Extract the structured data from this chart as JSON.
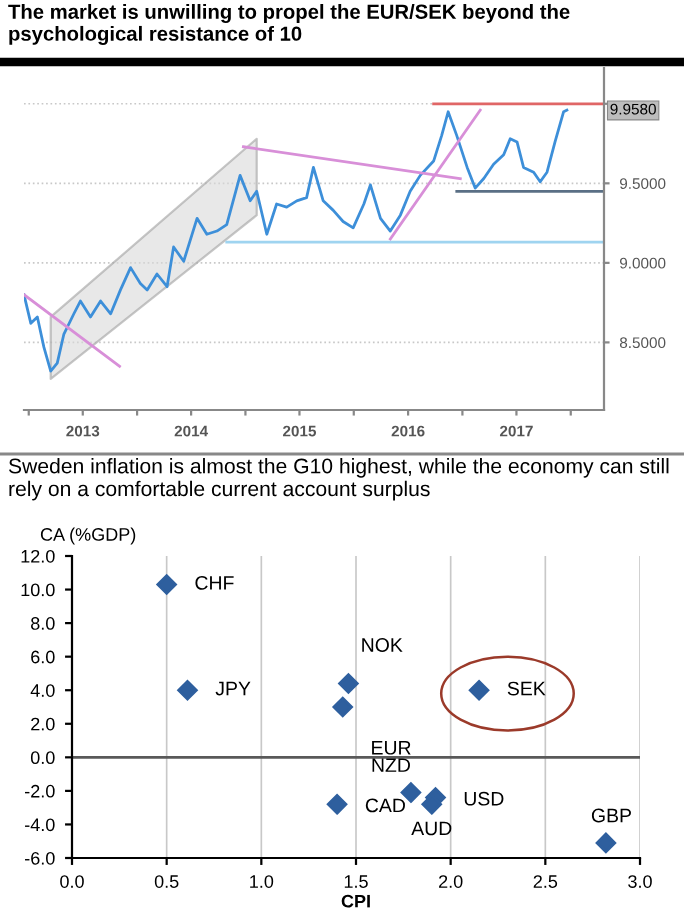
{
  "chart_data": [
    {
      "type": "line",
      "title": "The market is unwilling to propel the EUR/SEK beyond the psychological resistance of 10",
      "series": [
        {
          "color": "#3d8fd9",
          "x": [
            "2012-12-16",
            "2013-01-08",
            "2013-01-30",
            "2013-02-21",
            "2013-03-16",
            "2013-04-07",
            "2013-04-29",
            "2013-06-02",
            "2013-06-24",
            "2013-07-28",
            "2013-08-31",
            "2013-10-04",
            "2013-11-06",
            "2013-12-10",
            "2014-01-12",
            "2014-02-04",
            "2014-03-09",
            "2014-04-12",
            "2014-05-04",
            "2014-06-07",
            "2014-07-22",
            "2014-08-24",
            "2014-09-27",
            "2014-10-30",
            "2014-12-14",
            "2015-01-17",
            "2015-02-08",
            "2015-03-14",
            "2015-04-16",
            "2015-05-20",
            "2015-06-23",
            "2015-07-26",
            "2015-08-18",
            "2015-09-20",
            "2015-10-24",
            "2015-11-26",
            "2015-12-30",
            "2016-02-04",
            "2016-02-26",
            "2016-03-31",
            "2016-05-03",
            "2016-06-06",
            "2016-07-09",
            "2016-08-12",
            "2016-09-26",
            "2016-10-23",
            "2016-11-14",
            "2016-12-13",
            "2017-01-17",
            "2017-02-13",
            "2017-03-14",
            "2017-04-16",
            "2017-05-20",
            "2017-06-11",
            "2017-07-04",
            "2017-07-26",
            "2017-08-29",
            "2017-09-20",
            "2017-10-13",
            "2017-11-09",
            "2017-12-08",
            "2017-12-19"
          ],
          "values": [
            8.8,
            8.62,
            8.66,
            8.47,
            8.32,
            8.37,
            8.55,
            8.68,
            8.76,
            8.66,
            8.76,
            8.68,
            8.83,
            8.97,
            8.87,
            8.83,
            8.93,
            8.85,
            9.1,
            9.01,
            9.28,
            9.18,
            9.2,
            9.24,
            9.55,
            9.39,
            9.45,
            9.18,
            9.37,
            9.35,
            9.39,
            9.41,
            9.6,
            9.39,
            9.33,
            9.26,
            9.22,
            9.37,
            9.49,
            9.28,
            9.2,
            9.3,
            9.45,
            9.55,
            9.64,
            9.8,
            9.95,
            9.8,
            9.6,
            9.47,
            9.53,
            9.62,
            9.68,
            9.78,
            9.76,
            9.6,
            9.57,
            9.51,
            9.57,
            9.76,
            9.95,
            9.96
          ]
        },
        {
          "color": "#d9d9d9",
          "x": [
            "2013-03-16",
            "2015-02-08"
          ],
          "values": [
            null,
            null
          ],
          "lower": [
            8.27,
            9.3
          ],
          "upper": [
            8.66,
            9.78
          ]
        },
        {
          "color": "#d88fd8",
          "x": [
            "2012-12-16",
            "2013-11-03"
          ],
          "values": [
            8.8,
            8.35
          ]
        },
        {
          "color": "#d88fd8",
          "x": [
            "2014-12-25",
            "2016-12-25"
          ],
          "values": [
            9.73,
            9.53
          ]
        },
        {
          "color": "#d88fd8",
          "x": [
            "2016-05-03",
            "2017-03-02"
          ],
          "values": [
            9.15,
            9.96
          ]
        },
        {
          "color": "#e06666",
          "x": [
            "2016-09-26",
            "2018-04-23"
          ],
          "values": [
            10.0,
            10.0
          ]
        },
        {
          "color": "#5a6f85",
          "x": [
            "2016-12-13",
            "2018-04-23"
          ],
          "values": [
            9.45,
            9.45
          ]
        },
        {
          "color": "#9fd4f0",
          "x": [
            "2014-10-30",
            "2018-04-23"
          ],
          "values": [
            9.13,
            9.13
          ]
        }
      ],
      "annotations": [
        {
          "text": "9.9580",
          "x": "2017-12-19",
          "y": 9.958
        }
      ],
      "xlim": [
        "2012-12-16",
        "2018-04-23"
      ],
      "xticks": [
        {
          "value": "2013-01-01",
          "label": null
        },
        {
          "value": "2013-07-02",
          "label": "2013"
        },
        {
          "value": "2014-01-01",
          "label": null
        },
        {
          "value": "2014-07-02",
          "label": "2014"
        },
        {
          "value": "2015-01-01",
          "label": null
        },
        {
          "value": "2015-07-02",
          "label": "2015"
        },
        {
          "value": "2016-01-01",
          "label": null
        },
        {
          "value": "2016-07-02",
          "label": "2016"
        },
        {
          "value": "2017-01-01",
          "label": null
        },
        {
          "value": "2017-07-02",
          "label": "2017"
        },
        {
          "value": "2018-01-01",
          "label": null
        }
      ],
      "ylim": [
        8.075,
        10.225
      ],
      "yticks": [
        {
          "value": 8.5,
          "label": "8.5000"
        },
        {
          "value": 9.0,
          "label": "9.0000"
        },
        {
          "value": 9.5,
          "label": "9.5000"
        },
        {
          "value": 10.0,
          "label": null
        }
      ],
      "grid": "y"
    },
    {
      "type": "scatter",
      "title": "Sweden inflation is almost the G10 highest, while the economy can still rely on a comfortable current account surplus",
      "xlabel": "CPI",
      "ylabel": "CA (%GDP)",
      "marker": "diamond",
      "x": [
        0.5,
        0.61,
        1.46,
        1.43,
        2.15,
        1.79,
        1.92,
        1.9,
        1.4,
        2.82
      ],
      "values": [
        10.3,
        4.0,
        4.4,
        3.0,
        4.0,
        -2.1,
        -2.4,
        -2.8,
        -2.8,
        -5.1
      ],
      "value_labels": [
        "CHF",
        "JPY",
        "NOK",
        "EUR",
        null,
        "NZD",
        "USD",
        "AUD",
        "CAD",
        "GBP"
      ],
      "color": "#2e5f9e",
      "annotations": [
        {
          "text": "SEK",
          "x": 2.15,
          "y": 4.0
        }
      ],
      "xlim": [
        0,
        3
      ],
      "xticks": [
        {
          "value": 0,
          "label": "0.0"
        },
        {
          "value": 0.5,
          "label": "0.5"
        },
        {
          "value": 1,
          "label": "1.0"
        },
        {
          "value": 1.5,
          "label": "1.5"
        },
        {
          "value": 2,
          "label": "2.0"
        },
        {
          "value": 2.5,
          "label": "2.5"
        },
        {
          "value": 3,
          "label": "3.0"
        }
      ],
      "ylim": [
        -6,
        12
      ],
      "yticks": [
        {
          "value": -6,
          "label": "-6.0"
        },
        {
          "value": -4,
          "label": "-4.0"
        },
        {
          "value": -2,
          "label": "-2.0"
        },
        {
          "value": 0,
          "label": "0.0"
        },
        {
          "value": 2,
          "label": "2.0"
        },
        {
          "value": 4,
          "label": "4.0"
        },
        {
          "value": 6,
          "label": "6.0"
        },
        {
          "value": 8,
          "label": "8.0"
        },
        {
          "value": 10,
          "label": "10.0"
        },
        {
          "value": 12,
          "label": "12.0"
        }
      ],
      "grid": "x",
      "ref_lines": [
        {
          "axis": "y",
          "value": 0,
          "color": "#595959"
        }
      ]
    }
  ]
}
